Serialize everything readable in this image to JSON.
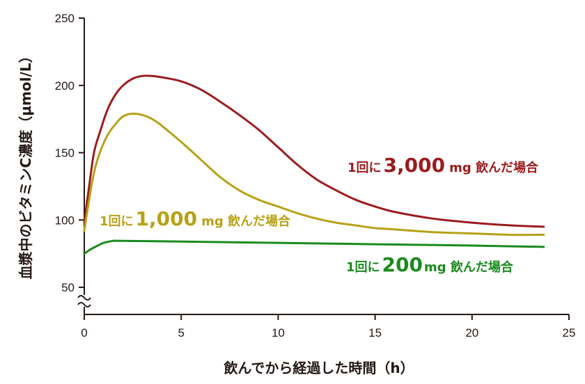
{
  "chart_data": {
    "type": "line",
    "xlabel": "飲んでから経過した時間（h）",
    "ylabel": "血漿中のビタミンC濃度（μmol/L）",
    "xlim": [
      0,
      25
    ],
    "ylim": [
      50,
      250
    ],
    "y_axis_break": true,
    "x_ticks": [
      "0",
      "5",
      "10",
      "15",
      "20",
      "25"
    ],
    "y_ticks": [
      "50",
      "100",
      "150",
      "200",
      "250"
    ],
    "grid": false,
    "legend": "inline-labels",
    "series": [
      {
        "name": "1回に3,000mg 飲んだ場合",
        "label_pre": "1回に",
        "label_num": "3,000",
        "label_post": "mg 飲んだ場合",
        "color": "#9b1b1e",
        "x": [
          0,
          0.25,
          0.5,
          0.8,
          1.2,
          1.6,
          2.0,
          2.5,
          3.0,
          3.5,
          4.0,
          5,
          6,
          7,
          8,
          9,
          10,
          11,
          12,
          13,
          14,
          15,
          16,
          18,
          20,
          22,
          23.7
        ],
        "y": [
          98,
          125,
          150,
          165,
          182,
          193,
          200,
          205,
          207,
          207,
          206,
          203,
          197,
          188,
          178,
          167,
          154,
          141,
          130,
          122,
          115,
          110,
          106,
          101,
          98,
          96,
          95
        ]
      },
      {
        "name": "1回に1,000mg 飲んだ場合",
        "label_pre": "1回に",
        "label_num": "1,000",
        "label_post": "mg 飲んだ場合",
        "color": "#b7a116",
        "x": [
          0,
          0.25,
          0.5,
          0.8,
          1.2,
          1.6,
          2.0,
          2.5,
          3.0,
          3.5,
          4.0,
          5,
          6,
          7,
          8,
          9,
          10,
          11,
          12,
          13,
          14,
          15,
          16,
          18,
          20,
          22,
          23.7
        ],
        "y": [
          92,
          115,
          135,
          150,
          163,
          171,
          177,
          179,
          178,
          175,
          170,
          158,
          145,
          132,
          122,
          115,
          110,
          105,
          101,
          98,
          96,
          94,
          93,
          91,
          90,
          89,
          89
        ]
      },
      {
        "name": "1回に200mg 飲んだ場合",
        "label_pre": "1回に",
        "label_num": "200",
        "label_post": "mg 飲んだ場合",
        "color": "#1a8a1e",
        "x": [
          0,
          0.3,
          0.7,
          1.0,
          1.5,
          2,
          5,
          10,
          15,
          20,
          23.7
        ],
        "y": [
          75,
          78,
          81,
          83,
          84.5,
          84.5,
          84,
          83,
          82,
          81,
          80
        ]
      }
    ]
  }
}
